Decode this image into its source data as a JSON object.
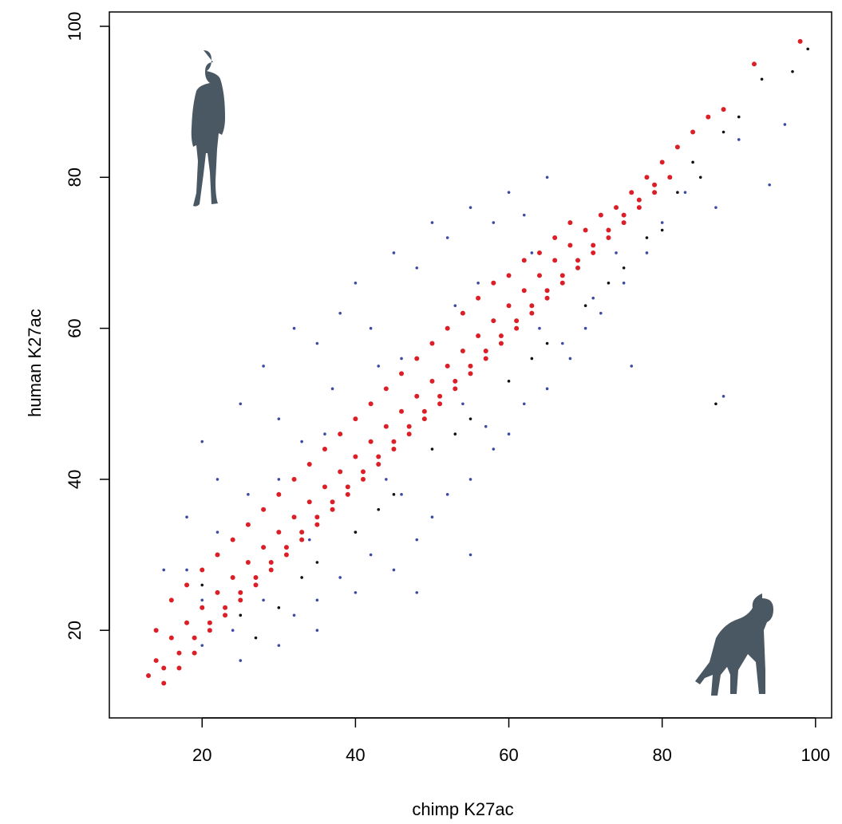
{
  "chart_data": {
    "type": "scatter",
    "x_label": "chimp K27ac",
    "y_label": "human K27ac",
    "xlim": [
      7.9,
      102.1
    ],
    "ylim": [
      8.4,
      101.9
    ],
    "xticks": [
      20,
      40,
      60,
      80,
      100
    ],
    "yticks": [
      20,
      40,
      60,
      80,
      100
    ],
    "series": [
      {
        "color": "#3b4ba3",
        "x": [
          15,
          18,
          20,
          22,
          25,
          28,
          30,
          32,
          35,
          38,
          40,
          42,
          45,
          48,
          50,
          52,
          55,
          58,
          60,
          62,
          65,
          20,
          25,
          30,
          32,
          35,
          38,
          40,
          42,
          45,
          48,
          50,
          52,
          55,
          58,
          60,
          62,
          65,
          68,
          70,
          72,
          75,
          78,
          80,
          83,
          87,
          90,
          96,
          88,
          94,
          24,
          28,
          34,
          44,
          54,
          64,
          74,
          30,
          36,
          46,
          56,
          18,
          22,
          26,
          33,
          37,
          43,
          53,
          63,
          40,
          46,
          57,
          67,
          71,
          76,
          55,
          48,
          35,
          25,
          20
        ],
        "values": [
          28,
          35,
          45,
          40,
          50,
          55,
          48,
          60,
          58,
          62,
          66,
          60,
          70,
          68,
          74,
          72,
          76,
          74,
          78,
          75,
          80,
          18,
          16,
          18,
          22,
          24,
          27,
          25,
          30,
          28,
          32,
          35,
          38,
          40,
          44,
          46,
          50,
          52,
          56,
          60,
          62,
          66,
          70,
          74,
          78,
          76,
          85,
          87,
          51,
          79,
          20,
          24,
          32,
          40,
          50,
          60,
          70,
          40,
          46,
          56,
          66,
          28,
          33,
          38,
          45,
          52,
          55,
          63,
          70,
          33,
          38,
          47,
          58,
          64,
          55,
          30,
          25,
          20,
          22,
          24
        ]
      },
      {
        "color": "#111111",
        "x": [
          18,
          25,
          30,
          35,
          40,
          45,
          50,
          55,
          60,
          65,
          70,
          75,
          80,
          82,
          85,
          90,
          93,
          97,
          99,
          27,
          33,
          43,
          53,
          63,
          73,
          78,
          84,
          88,
          87,
          22,
          20
        ],
        "values": [
          26,
          22,
          23,
          29,
          33,
          38,
          44,
          48,
          53,
          58,
          63,
          68,
          73,
          78,
          80,
          88,
          93,
          94,
          97,
          19,
          27,
          36,
          46,
          56,
          66,
          72,
          82,
          86,
          50,
          30,
          26
        ]
      },
      {
        "color": "#dc1f27",
        "x": [
          13,
          14,
          15,
          16,
          17,
          18,
          19,
          20,
          21,
          22,
          23,
          24,
          25,
          26,
          27,
          28,
          29,
          30,
          31,
          32,
          33,
          34,
          35,
          36,
          37,
          38,
          39,
          40,
          41,
          42,
          43,
          44,
          45,
          46,
          47,
          48,
          49,
          50,
          51,
          52,
          53,
          54,
          55,
          56,
          57,
          58,
          59,
          60,
          61,
          62,
          63,
          64,
          65,
          66,
          67,
          68,
          69,
          70,
          71,
          72,
          73,
          74,
          75,
          76,
          77,
          78,
          79,
          80,
          81,
          82,
          84,
          86,
          88,
          92,
          98,
          14,
          16,
          18,
          20,
          22,
          24,
          26,
          28,
          30,
          32,
          34,
          36,
          38,
          40,
          42,
          44,
          46,
          48,
          50,
          52,
          54,
          56,
          58,
          60,
          62,
          64,
          66,
          68,
          15,
          17,
          19,
          21,
          23,
          25,
          27,
          29,
          31,
          33,
          35,
          37,
          39,
          41,
          43,
          45,
          47,
          49,
          51,
          53,
          55,
          57,
          59,
          61,
          63,
          65,
          67,
          69,
          71,
          73,
          75,
          77,
          79
        ],
        "values": [
          14,
          16,
          13,
          19,
          15,
          21,
          17,
          23,
          20,
          25,
          22,
          27,
          24,
          29,
          26,
          31,
          28,
          33,
          30,
          35,
          32,
          37,
          34,
          39,
          36,
          41,
          38,
          43,
          40,
          45,
          42,
          47,
          44,
          49,
          46,
          51,
          48,
          53,
          50,
          55,
          52,
          57,
          54,
          59,
          56,
          61,
          58,
          63,
          60,
          65,
          62,
          67,
          64,
          69,
          66,
          71,
          68,
          73,
          70,
          75,
          72,
          76,
          74,
          78,
          76,
          80,
          78,
          82,
          80,
          84,
          86,
          88,
          89,
          95,
          98,
          20,
          24,
          26,
          28,
          30,
          32,
          34,
          36,
          38,
          40,
          42,
          44,
          46,
          48,
          50,
          52,
          54,
          56,
          58,
          60,
          62,
          64,
          66,
          67,
          69,
          70,
          72,
          74,
          15,
          17,
          19,
          21,
          23,
          25,
          27,
          29,
          31,
          33,
          35,
          37,
          39,
          41,
          43,
          45,
          47,
          49,
          51,
          53,
          55,
          57,
          59,
          61,
          63,
          65,
          67,
          69,
          71,
          73,
          75,
          77,
          79
        ]
      }
    ]
  }
}
